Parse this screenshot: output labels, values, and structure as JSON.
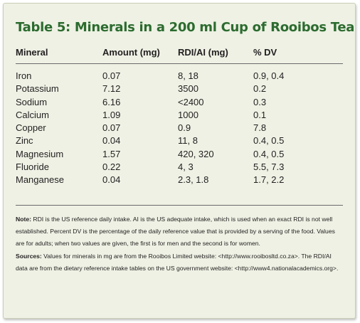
{
  "title": "Table 5: Minerals in a 200 ml Cup of Rooibos Tea",
  "headers": {
    "mineral": "Mineral",
    "amount": "Amount (mg)",
    "rdi": "RDI/AI (mg)",
    "dv": "% DV"
  },
  "rows": [
    {
      "mineral": "Iron",
      "amount": "0.07",
      "rdi": "8, 18",
      "dv": "0.9, 0.4"
    },
    {
      "mineral": "Potassium",
      "amount": "7.12",
      "rdi": "3500",
      "dv": "0.2"
    },
    {
      "mineral": "Sodium",
      "amount": "6.16",
      "rdi": "<2400",
      "dv": "0.3"
    },
    {
      "mineral": "Calcium",
      "amount": "1.09",
      "rdi": "1000",
      "dv": "0.1"
    },
    {
      "mineral": "Copper",
      "amount": "0.07",
      "rdi": "0.9",
      "dv": "7.8"
    },
    {
      "mineral": "Zinc",
      "amount": "0.04",
      "rdi": "11, 8",
      "dv": "0.4, 0.5"
    },
    {
      "mineral": "Magnesium",
      "amount": "1.57",
      "rdi": "420, 320",
      "dv": "0.4, 0.5"
    },
    {
      "mineral": "Fluoride",
      "amount": "0.22",
      "rdi": "4, 3",
      "dv": "5.5, 7.3"
    },
    {
      "mineral": "Manganese",
      "amount": "0.04",
      "rdi": "2.3, 1.8",
      "dv": "1.7, 2.2"
    }
  ],
  "note": {
    "label": "Note:",
    "text": "RDI is the US reference daily intake. AI is the US adequate intake, which is used when an exact RDI is not well established. Percent DV is the percentage of the daily reference value that is provided by a serving of the food. Values are for adults; when two values are given, the first is for men and the second is for women."
  },
  "sources": {
    "label": "Sources:",
    "text": "Values for minerals in mg are from the Rooibos Limited website: <http://www.rooibosltd.co.za>. The RDI/AI data are from the dietary reference intake tables on the US government website: <http://www4.nationalacademics.org>."
  },
  "colors": {
    "title": "#2c6b2f",
    "background": "#eef1e4",
    "text": "#231f20"
  }
}
